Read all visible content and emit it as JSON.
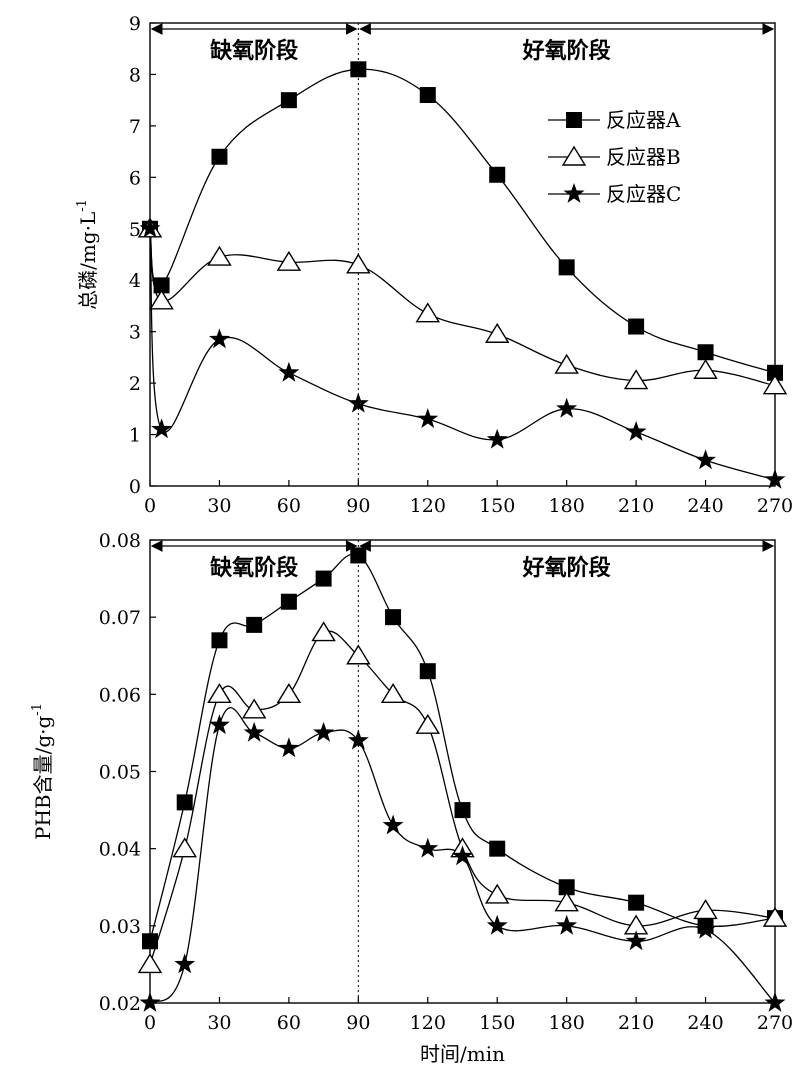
{
  "chart_data": [
    {
      "type": "line",
      "ylabel": "总磷/mg·L",
      "ylabel_sup": "-1",
      "xlim": [
        0,
        270
      ],
      "ylim": [
        0,
        9
      ],
      "xticks": [
        "0",
        "30",
        "60",
        "90",
        "120",
        "150",
        "180",
        "210",
        "240",
        "270"
      ],
      "yticks": [
        "0",
        "1",
        "2",
        "3",
        "4",
        "5",
        "6",
        "7",
        "8",
        "9"
      ],
      "grid": false,
      "legend": "top-right",
      "phases": [
        {
          "label": "缺氧阶段",
          "from": 0,
          "to": 90
        },
        {
          "label": "好氧阶段",
          "from": 90,
          "to": 270
        }
      ],
      "series": [
        {
          "name": "反应器A",
          "marker": "filled-square",
          "x": [
            0,
            5,
            30,
            60,
            90,
            120,
            150,
            180,
            210,
            240,
            270
          ],
          "values": [
            5.0,
            3.9,
            6.4,
            7.5,
            8.1,
            7.6,
            6.05,
            4.25,
            3.1,
            2.6,
            2.2
          ]
        },
        {
          "name": "反应器B",
          "marker": "open-triangle",
          "x": [
            0,
            5,
            30,
            60,
            90,
            120,
            150,
            180,
            210,
            240,
            270
          ],
          "values": [
            5.0,
            3.6,
            4.45,
            4.35,
            4.3,
            3.35,
            2.95,
            2.35,
            2.05,
            2.25,
            1.95
          ]
        },
        {
          "name": "反应器C",
          "marker": "filled-star",
          "x": [
            0,
            5,
            30,
            60,
            90,
            120,
            150,
            180,
            210,
            240,
            270
          ],
          "values": [
            5.0,
            1.1,
            2.85,
            2.2,
            1.6,
            1.3,
            0.9,
            1.5,
            1.05,
            0.5,
            0.12
          ]
        }
      ]
    },
    {
      "type": "line",
      "xlabel": "时间/min",
      "ylabel": "PHB含量/g·g",
      "ylabel_sup": "-1",
      "xlim": [
        0,
        270
      ],
      "ylim": [
        0.02,
        0.08
      ],
      "xticks": [
        "0",
        "30",
        "60",
        "90",
        "120",
        "150",
        "180",
        "210",
        "240",
        "270"
      ],
      "yticks": [
        "0.02",
        "0.03",
        "0.04",
        "0.05",
        "0.06",
        "0.07",
        "0.08"
      ],
      "grid": false,
      "phases": [
        {
          "label": "缺氧阶段",
          "from": 0,
          "to": 90
        },
        {
          "label": "好氧阶段",
          "from": 90,
          "to": 270
        }
      ],
      "series": [
        {
          "name": "反应器A",
          "marker": "filled-square",
          "x": [
            0,
            15,
            30,
            45,
            60,
            75,
            90,
            105,
            120,
            135,
            150,
            180,
            210,
            240,
            270
          ],
          "values": [
            0.028,
            0.046,
            0.067,
            0.069,
            0.072,
            0.075,
            0.078,
            0.07,
            0.063,
            0.045,
            0.04,
            0.035,
            0.033,
            0.03,
            0.031
          ]
        },
        {
          "name": "反应器B",
          "marker": "open-triangle",
          "x": [
            0,
            15,
            30,
            45,
            60,
            75,
            90,
            105,
            120,
            135,
            150,
            180,
            210,
            240,
            270
          ],
          "values": [
            0.025,
            0.04,
            0.06,
            0.058,
            0.06,
            0.068,
            0.065,
            0.06,
            0.056,
            0.04,
            0.034,
            0.033,
            0.03,
            0.032,
            0.031
          ]
        },
        {
          "name": "反应器C",
          "marker": "filled-star",
          "x": [
            0,
            15,
            30,
            45,
            60,
            75,
            90,
            105,
            120,
            135,
            150,
            180,
            210,
            240,
            270
          ],
          "values": [
            0.02,
            0.025,
            0.056,
            0.055,
            0.053,
            0.055,
            0.054,
            0.043,
            0.04,
            0.039,
            0.03,
            0.03,
            0.028,
            0.0295,
            0.02
          ]
        }
      ]
    }
  ]
}
